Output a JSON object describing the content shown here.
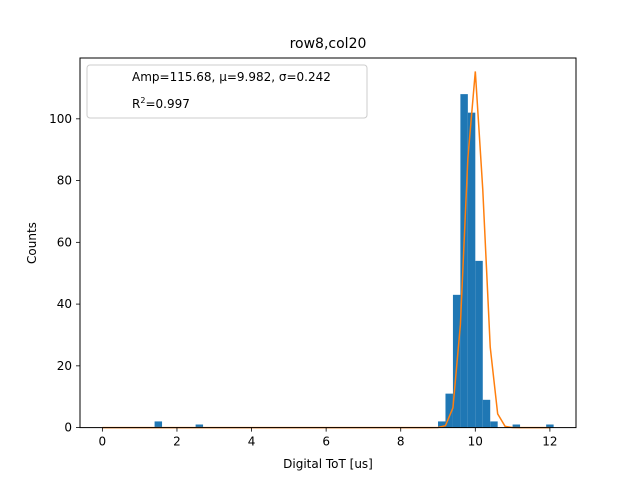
{
  "chart_data": {
    "type": "bar",
    "title": "row8,col20",
    "xlabel": "Digital ToT [us]",
    "ylabel": "Counts",
    "xlim": [
      -0.6,
      12.7
    ],
    "ylim": [
      0,
      119.7
    ],
    "xticks": [
      0,
      2,
      4,
      6,
      8,
      10,
      12
    ],
    "yticks": [
      0,
      20,
      40,
      60,
      80,
      100
    ],
    "grid": false,
    "legend_position": "top-left",
    "legend": {
      "line1": "Amp=115.68, μ=9.982, σ=0.242",
      "line2_main": "R",
      "line2_sup": "2",
      "line2_rest": "=0.997"
    },
    "histogram": {
      "bin_width": 0.2,
      "color": "#1f77b4",
      "bins": [
        {
          "x": 1.5,
          "count": 2
        },
        {
          "x": 2.6,
          "count": 1
        },
        {
          "x": 9.1,
          "count": 2
        },
        {
          "x": 9.3,
          "count": 11
        },
        {
          "x": 9.5,
          "count": 43
        },
        {
          "x": 9.7,
          "count": 108
        },
        {
          "x": 9.9,
          "count": 102
        },
        {
          "x": 10.1,
          "count": 54
        },
        {
          "x": 10.3,
          "count": 9
        },
        {
          "x": 10.5,
          "count": 2
        },
        {
          "x": 11.1,
          "count": 1
        },
        {
          "x": 12.0,
          "count": 1
        }
      ]
    },
    "fit": {
      "type": "gaussian",
      "amp": 115.68,
      "mu": 9.982,
      "sigma": 0.242,
      "x_start": 0.0,
      "x_end": 12.0,
      "x_step": 0.2,
      "color": "#ff7f0e"
    }
  }
}
